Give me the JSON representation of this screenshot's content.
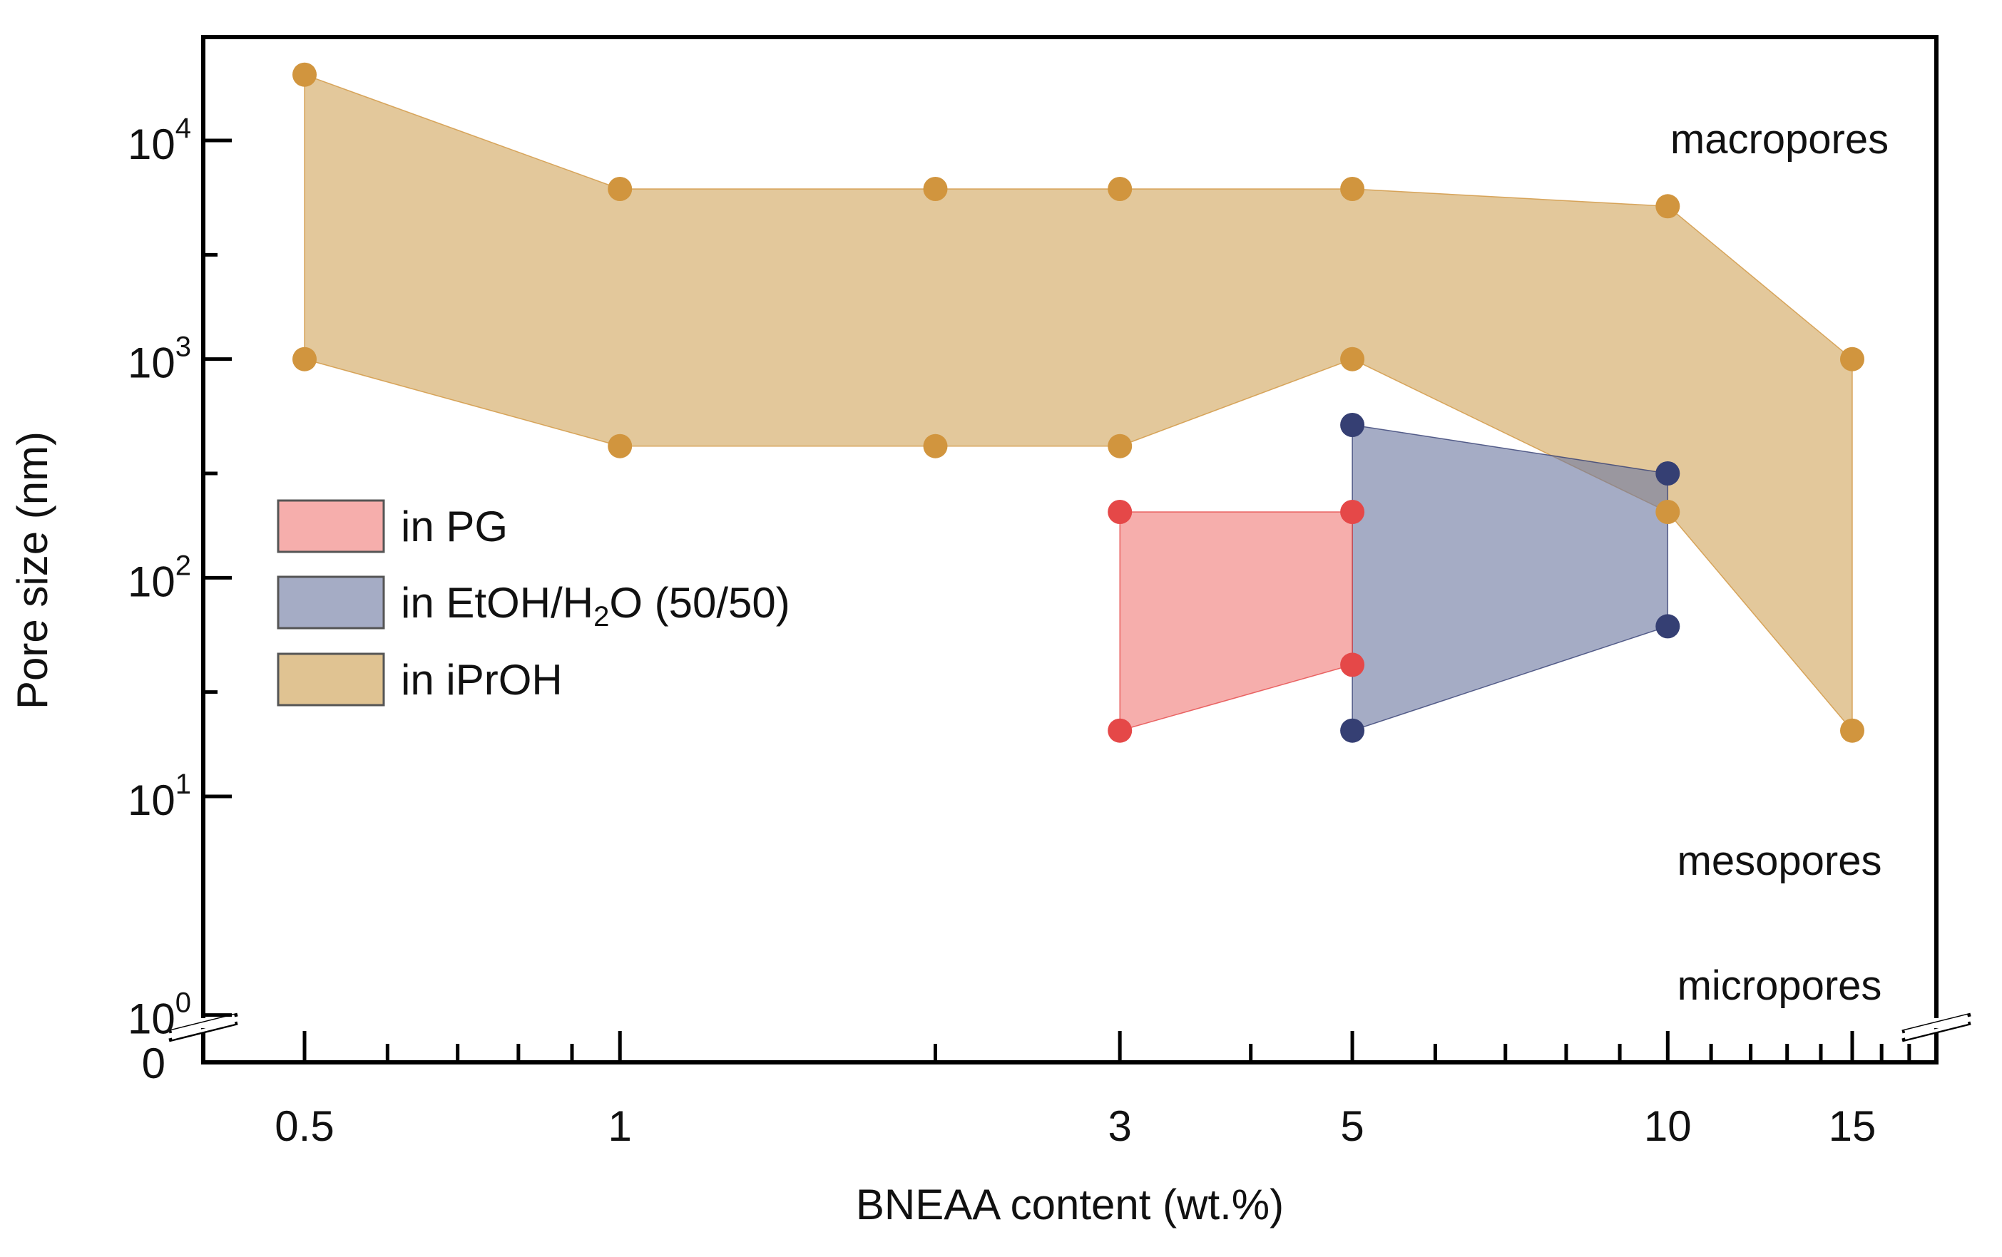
{
  "chart_data": {
    "type": "area",
    "title": "",
    "xlabel": "BNEAA content (wt.%)",
    "ylabel": "Pore size (nm)",
    "x_scale": "log",
    "y_scale": "log-with-break",
    "xlim": [
      0.42,
      19
    ],
    "ylim": [
      1,
      30000
    ],
    "x_ticks": [
      {
        "value": 0.5,
        "label": "0.5"
      },
      {
        "value": 1,
        "label": "1"
      },
      {
        "value": 3,
        "label": "3"
      },
      {
        "value": 5,
        "label": "5"
      },
      {
        "value": 10,
        "label": "10"
      },
      {
        "value": 15,
        "label": "15"
      }
    ],
    "y_ticks": [
      {
        "value": 1,
        "base": "10",
        "exp": "0"
      },
      {
        "value": 10,
        "base": "10",
        "exp": "1"
      },
      {
        "value": 100,
        "base": "10",
        "exp": "2"
      },
      {
        "value": 1000,
        "base": "10",
        "exp": "3"
      },
      {
        "value": 10000,
        "base": "10",
        "exp": "4"
      }
    ],
    "y_zero_label": "0",
    "region_labels": [
      "macropores",
      "mesopores",
      "micropores"
    ],
    "series": [
      {
        "name": "in iPrOH",
        "key": "iproh",
        "fill": "#dbb97f",
        "marker": "#d1953e",
        "x": [
          0.5,
          1,
          2,
          3,
          5,
          10,
          15
        ],
        "upper": [
          20000,
          6000,
          6000,
          6000,
          6000,
          5000,
          1000
        ],
        "lower": [
          1000,
          400,
          400,
          400,
          1000,
          200,
          20
        ]
      },
      {
        "name": "in EtOH/H2O (50/50)",
        "key": "etoh",
        "fill": "#6d79a1",
        "marker": "#353f73",
        "x": [
          5,
          10
        ],
        "upper": [
          500,
          300
        ],
        "lower": [
          20,
          60
        ]
      },
      {
        "name": "in PG",
        "key": "pg",
        "fill": "#f07c79",
        "marker": "#e54848",
        "x": [
          3,
          5
        ],
        "upper": [
          200,
          200
        ],
        "lower": [
          20,
          40
        ]
      }
    ],
    "legend": {
      "position": "center-left",
      "entries": [
        {
          "key": "pg",
          "parts": [
            {
              "t": "in PG",
              "s": "n"
            }
          ]
        },
        {
          "key": "etoh",
          "parts": [
            {
              "t": "in EtOH/H",
              "s": "n"
            },
            {
              "t": "2",
              "s": "sub"
            },
            {
              "t": "O (50/50)",
              "s": "n"
            }
          ]
        },
        {
          "key": "iproh",
          "parts": [
            {
              "t": "in iPrOH",
              "s": "n"
            }
          ]
        }
      ]
    }
  }
}
